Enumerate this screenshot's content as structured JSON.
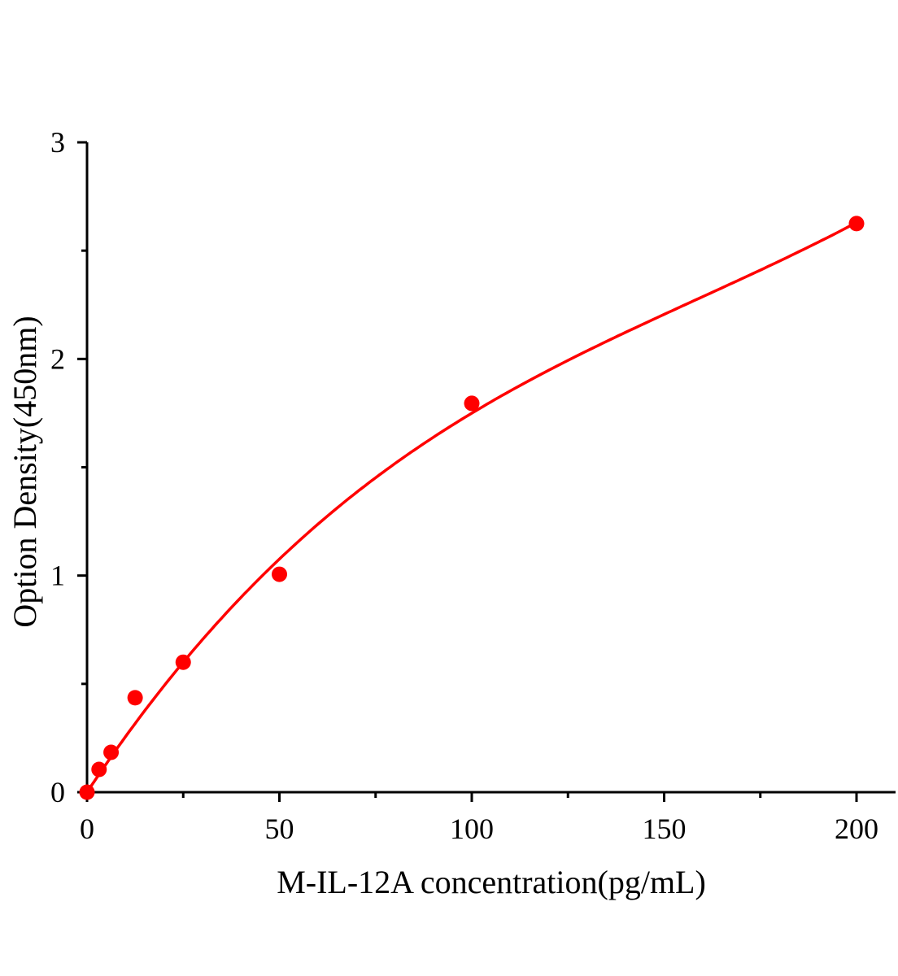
{
  "chart_data": {
    "type": "scatter",
    "title": "",
    "xlabel": "M-IL-12A concentration(pg/mL)",
    "ylabel": "Option Density(450nm)",
    "xlim": [
      0,
      210
    ],
    "ylim": [
      0,
      3
    ],
    "x_ticks": [
      "0",
      "50",
      "100",
      "150",
      "200"
    ],
    "x_tick_values": [
      0,
      50,
      100,
      150,
      200
    ],
    "y_ticks": [
      "0",
      "1",
      "2",
      "3"
    ],
    "y_tick_values": [
      0,
      1,
      2,
      3
    ],
    "grid": false,
    "color": "#ff0000",
    "series": [
      {
        "x": [
          0,
          3.125,
          6.25,
          12.5,
          25,
          50,
          100,
          200
        ],
        "y": [
          0,
          0.105,
          0.184,
          0.436,
          0.6,
          1.006,
          1.795,
          2.625
        ],
        "fit_curve": true
      }
    ]
  }
}
